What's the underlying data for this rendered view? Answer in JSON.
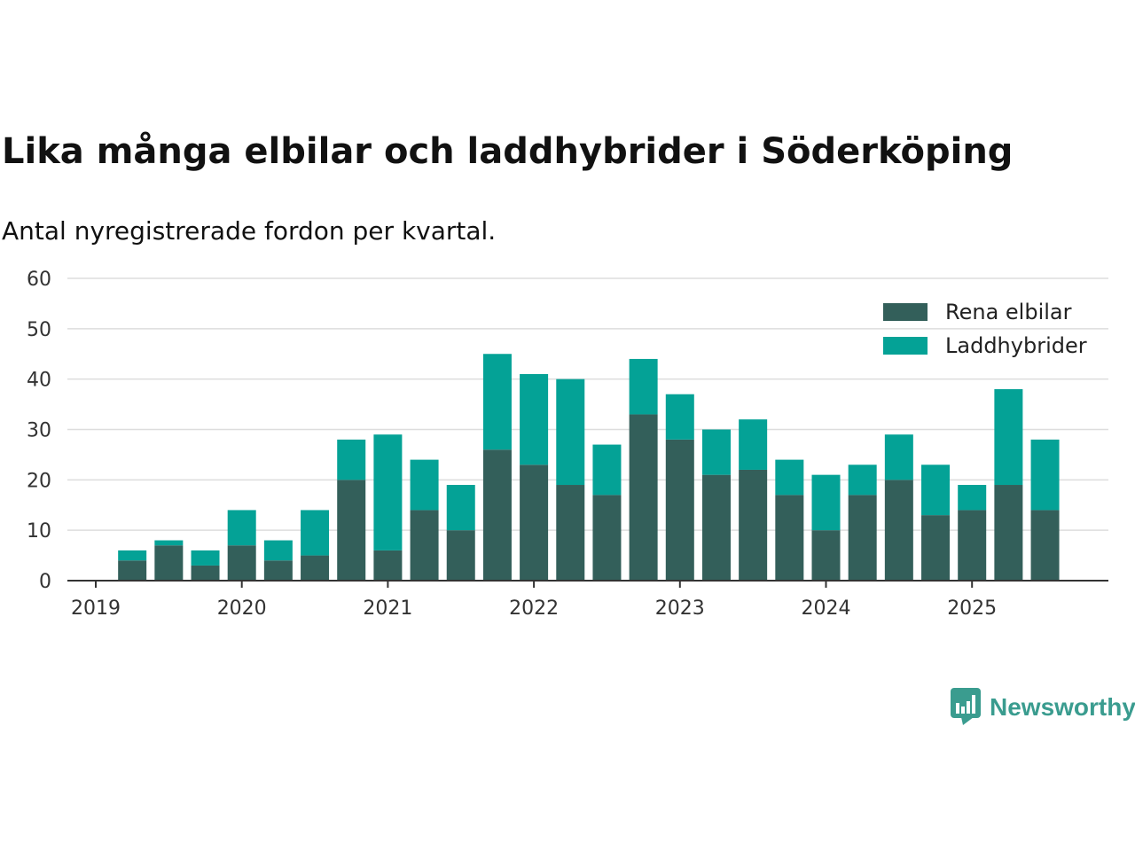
{
  "title": "Lika många elbilar och laddhybrider i Söderköping",
  "subtitle": "Antal nyregistrerade fordon per kvartal.",
  "brand": {
    "name": "Newsworthy",
    "icon": "newsworthy-logo-icon",
    "color": "#3a9c8f"
  },
  "chart_data": {
    "type": "bar",
    "stacked": true,
    "x_ticks": [
      "2019",
      "2020",
      "2021",
      "2022",
      "2023",
      "2024",
      "2025"
    ],
    "y_ticks": [
      0,
      10,
      20,
      30,
      40,
      50,
      60
    ],
    "ylim": [
      0,
      60
    ],
    "grid": true,
    "legend_position": "top-right",
    "categories": [
      "2019 Q1",
      "2019 Q2",
      "2019 Q3",
      "2019 Q4",
      "2020 Q1",
      "2020 Q2",
      "2020 Q3",
      "2020 Q4",
      "2021 Q1",
      "2021 Q2",
      "2021 Q3",
      "2021 Q4",
      "2022 Q1",
      "2022 Q2",
      "2022 Q3",
      "2022 Q4",
      "2023 Q1",
      "2023 Q2",
      "2023 Q3",
      "2023 Q4",
      "2024 Q1",
      "2024 Q2",
      "2024 Q3",
      "2024 Q4",
      "2025 Q1",
      "2025 Q2",
      "2025 Q3"
    ],
    "series": [
      {
        "name": "Rena elbilar",
        "color": "#335f5a",
        "values": [
          0,
          4,
          7,
          3,
          7,
          4,
          5,
          20,
          6,
          14,
          10,
          26,
          23,
          19,
          17,
          33,
          28,
          21,
          22,
          17,
          10,
          17,
          20,
          13,
          14,
          19,
          14
        ]
      },
      {
        "name": "Laddhybrider",
        "color": "#04a296",
        "values": [
          0,
          2,
          1,
          3,
          7,
          4,
          9,
          8,
          23,
          10,
          9,
          19,
          18,
          21,
          10,
          11,
          9,
          9,
          10,
          7,
          11,
          6,
          9,
          10,
          5,
          19,
          14
        ]
      }
    ]
  }
}
